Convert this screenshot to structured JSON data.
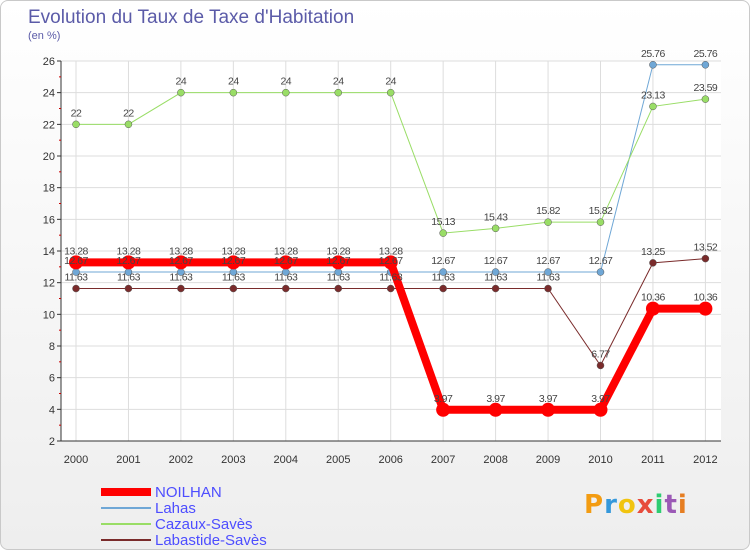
{
  "header": {
    "title": "Evolution du Taux de Taxe d'Habitation",
    "unit": "(en %)"
  },
  "logo": {
    "text": "Proxiti",
    "letters": [
      "P",
      "r",
      "o",
      "x",
      "i",
      "t",
      "i"
    ],
    "colors": [
      "#f39c12",
      "#3498db",
      "#f1c40f",
      "#e74c3c",
      "#2ecc71",
      "#9b59b6",
      "#e67e22"
    ]
  },
  "chart_data": {
    "type": "line",
    "title": "Evolution du Taux de Taxe d'Habitation",
    "ylabel": "(en %)",
    "xlabel": "",
    "ylim": [
      2,
      26
    ],
    "yticks": [
      2,
      4,
      6,
      8,
      10,
      12,
      14,
      16,
      18,
      20,
      22,
      24,
      26
    ],
    "x": [
      "2000",
      "2001",
      "2002",
      "2003",
      "2004",
      "2005",
      "2006",
      "2007",
      "2008",
      "2009",
      "2010",
      "2011",
      "2012"
    ],
    "grid": true,
    "legend_position": "bottom-left",
    "series": [
      {
        "name": "NOILHAN",
        "color": "#ff0000",
        "width": 8,
        "marker": 7,
        "values": [
          13.28,
          13.28,
          13.28,
          13.28,
          13.28,
          13.28,
          13.28,
          3.97,
          3.97,
          3.97,
          3.97,
          10.36,
          10.36
        ],
        "labels": [
          "13.28",
          "13.28",
          "13.28",
          "13.28",
          "13.28",
          "13.28",
          "13.28",
          "3.97",
          "3.97",
          "3.97",
          "3.97",
          "10.36",
          "10.36"
        ]
      },
      {
        "name": "Lahas",
        "color": "#6fa7d6",
        "width": 1,
        "marker": 3.5,
        "values": [
          12.67,
          12.67,
          12.67,
          12.67,
          12.67,
          12.67,
          12.67,
          12.67,
          12.67,
          12.67,
          12.67,
          25.76,
          25.76
        ],
        "labels": [
          "12.67",
          "12.67",
          "12.67",
          "12.67",
          "12.67",
          "12.67",
          "12.67",
          "12.67",
          "12.67",
          "12.67",
          "12.67",
          "25.76",
          "25.76"
        ]
      },
      {
        "name": "Cazaux-Savès",
        "color": "#99dd66",
        "width": 1,
        "marker": 3.5,
        "values": [
          22,
          22,
          24,
          24,
          24,
          24,
          24,
          15.13,
          15.43,
          15.82,
          15.82,
          23.13,
          23.59
        ],
        "labels": [
          "22",
          "22",
          "24",
          "24",
          "24",
          "24",
          "24",
          "15.13",
          "15.43",
          "15.82",
          "15.82",
          "23.13",
          "23.59"
        ]
      },
      {
        "name": "Labastide-Savès",
        "color": "#7a2b2b",
        "width": 1,
        "marker": 3.5,
        "values": [
          11.63,
          11.63,
          11.63,
          11.63,
          11.63,
          11.63,
          11.63,
          11.63,
          11.63,
          11.63,
          6.77,
          13.25,
          13.52
        ],
        "labels": [
          "11.63",
          "11.63",
          "11.63",
          "11.63",
          "11.63",
          "11.63",
          "11.63",
          "11.63",
          "11.63",
          "11.63",
          "6.77",
          "13.25",
          "13.52"
        ]
      }
    ]
  }
}
